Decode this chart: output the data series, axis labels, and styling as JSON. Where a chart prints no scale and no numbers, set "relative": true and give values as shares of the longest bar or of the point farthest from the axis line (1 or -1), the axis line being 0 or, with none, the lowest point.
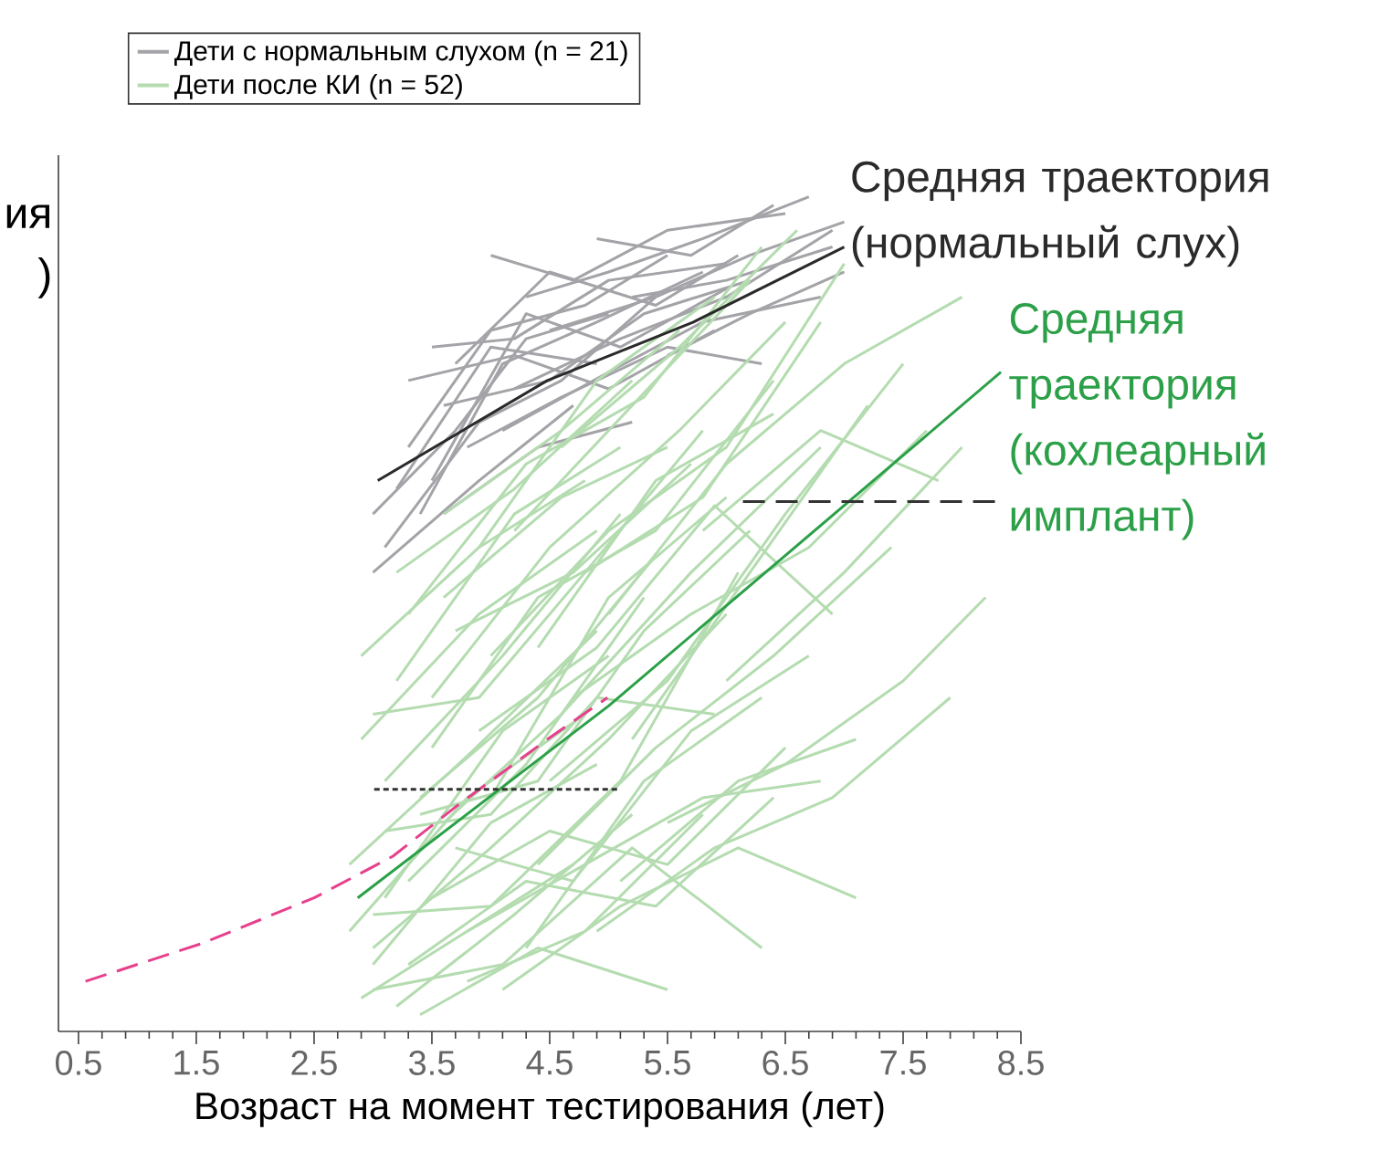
{
  "chart_data": {
    "type": "line",
    "relative": true,
    "xlabel": "Возраст на момент тестирования (лет)",
    "xlim": [
      0.33,
      8.5
    ],
    "xticks": [
      0.5,
      1.5,
      2.5,
      3.5,
      4.5,
      5.5,
      6.5,
      7.5,
      8.5
    ],
    "tick_labels": "x",
    "legend": "top",
    "annotations": [
      {
        "text": "Средняя траектория (нормальный слух)",
        "x": 7.0,
        "y": 0.94
      },
      {
        "text": "Средняя траектория (кохлеарный имплант)",
        "x": 8.33,
        "y": 0.79
      },
      "ия",
      ")"
    ],
    "series": [
      {
        "name": "Дети с нормальным слухом (n = 21)",
        "color": "#a3a3a8",
        "x": [
          3.0,
          3.7,
          4.3,
          5.0
        ],
        "values": [
          0.62,
          0.72,
          0.83,
          0.86
        ]
      },
      {
        "color": "#a3a3a8",
        "x": [
          3.3,
          4.0,
          4.8,
          5.5
        ],
        "values": [
          0.7,
          0.84,
          0.87,
          0.93
        ]
      },
      {
        "color": "#a3a3a8",
        "x": [
          3.5,
          4.2,
          5.0,
          6.0
        ],
        "values": [
          0.82,
          0.83,
          0.9,
          0.92
        ]
      },
      {
        "color": "#a3a3a8",
        "x": [
          3.4,
          4.1,
          4.9,
          5.8
        ],
        "values": [
          0.62,
          0.8,
          0.85,
          0.91
        ]
      },
      {
        "color": "#a3a3a8",
        "x": [
          4.0,
          4.7,
          5.5,
          6.5
        ],
        "values": [
          0.93,
          0.9,
          0.96,
          0.98
        ]
      },
      {
        "color": "#a3a3a8",
        "x": [
          3.1,
          3.9,
          4.6,
          5.4
        ],
        "values": [
          0.58,
          0.73,
          0.78,
          0.88
        ]
      },
      {
        "color": "#a3a3a8",
        "x": [
          3.6,
          4.5,
          5.3,
          6.2
        ],
        "values": [
          0.75,
          0.78,
          0.86,
          0.9
        ]
      },
      {
        "color": "#a3a3a8",
        "x": [
          4.3,
          5.0,
          5.8,
          6.7
        ],
        "values": [
          0.88,
          0.91,
          0.95,
          1.0
        ]
      },
      {
        "color": "#a3a3a8",
        "x": [
          3.2,
          4.0,
          4.9
        ],
        "values": [
          0.65,
          0.82,
          0.8
        ]
      },
      {
        "color": "#a3a3a8",
        "x": [
          4.5,
          5.4,
          6.2,
          7.0
        ],
        "values": [
          0.84,
          0.88,
          0.93,
          0.97
        ]
      },
      {
        "color": "#a3a3a8",
        "x": [
          3.8,
          4.6,
          5.5,
          6.3
        ],
        "values": [
          0.7,
          0.76,
          0.82,
          0.8
        ]
      },
      {
        "color": "#a3a3a8",
        "x": [
          3.5,
          4.3,
          5.1,
          6.0
        ],
        "values": [
          0.66,
          0.86,
          0.82,
          0.89
        ]
      },
      {
        "color": "#a3a3a8",
        "x": [
          4.9,
          5.7,
          6.4
        ],
        "values": [
          0.95,
          0.93,
          0.99
        ]
      },
      {
        "color": "#a3a3a8",
        "x": [
          3.3,
          4.2,
          5.0,
          5.9
        ],
        "values": [
          0.78,
          0.81,
          0.77,
          0.84
        ]
      },
      {
        "color": "#a3a3a8",
        "x": [
          4.1,
          5.0,
          5.8,
          6.8
        ],
        "values": [
          0.72,
          0.79,
          0.85,
          0.88
        ]
      },
      {
        "color": "#a3a3a8",
        "x": [
          3.0,
          3.9,
          4.7
        ],
        "values": [
          0.55,
          0.66,
          0.75
        ]
      },
      {
        "color": "#a3a3a8",
        "x": [
          5.2,
          6.0,
          6.9
        ],
        "values": [
          0.88,
          0.9,
          0.94
        ]
      },
      {
        "color": "#a3a3a8",
        "x": [
          3.7,
          4.5,
          5.4,
          6.1
        ],
        "values": [
          0.8,
          0.91,
          0.87,
          0.93
        ]
      },
      {
        "color": "#a3a3a8",
        "x": [
          4.2,
          5.1,
          6.0,
          6.9
        ],
        "values": [
          0.77,
          0.83,
          0.88,
          0.96
        ]
      },
      {
        "color": "#a3a3a8",
        "x": [
          3.6,
          4.4,
          5.2
        ],
        "values": [
          0.62,
          0.7,
          0.73
        ]
      },
      {
        "color": "#a3a3a8",
        "x": [
          5.5,
          6.2,
          7.0
        ],
        "values": [
          0.81,
          0.86,
          0.91
        ]
      },
      {
        "name": "Дети после КИ (n = 52)",
        "color": "#b4dcb0",
        "x": [
          2.9,
          3.8,
          4.7
        ],
        "values": [
          0.04,
          0.12,
          0.2
        ]
      },
      {
        "color": "#b4dcb0",
        "x": [
          3.0,
          4.0,
          5.0,
          6.0
        ],
        "values": [
          0.1,
          0.22,
          0.35,
          0.5
        ]
      },
      {
        "color": "#b4dcb0",
        "x": [
          3.1,
          4.1,
          5.1
        ],
        "values": [
          0.3,
          0.45,
          0.62
        ]
      },
      {
        "color": "#b4dcb0",
        "x": [
          3.3,
          4.3,
          5.4,
          6.4
        ],
        "values": [
          0.08,
          0.18,
          0.15,
          0.28
        ]
      },
      {
        "color": "#b4dcb0",
        "x": [
          2.8,
          3.8,
          4.9
        ],
        "values": [
          0.2,
          0.33,
          0.48
        ]
      },
      {
        "color": "#b4dcb0",
        "x": [
          3.5,
          4.5,
          5.6,
          6.5
        ],
        "values": [
          0.4,
          0.58,
          0.72,
          0.85
        ]
      },
      {
        "color": "#b4dcb0",
        "x": [
          3.2,
          4.2,
          5.2
        ],
        "values": [
          0.55,
          0.65,
          0.78
        ]
      },
      {
        "color": "#b4dcb0",
        "x": [
          3.0,
          4.0,
          5.1,
          6.1
        ],
        "values": [
          0.14,
          0.15,
          0.3,
          0.55
        ]
      },
      {
        "color": "#b4dcb0",
        "x": [
          3.6,
          4.6,
          5.7,
          6.8
        ],
        "values": [
          0.25,
          0.38,
          0.55,
          0.7
        ]
      },
      {
        "color": "#b4dcb0",
        "x": [
          3.4,
          4.4,
          5.5
        ],
        "values": [
          0.02,
          0.1,
          0.05
        ]
      },
      {
        "color": "#b4dcb0",
        "x": [
          4.0,
          5.0,
          6.0,
          7.0
        ],
        "values": [
          0.45,
          0.6,
          0.7,
          0.92
        ]
      },
      {
        "color": "#b4dcb0",
        "x": [
          3.1,
          4.0,
          4.9,
          5.9
        ],
        "values": [
          0.24,
          0.26,
          0.4,
          0.38
        ]
      },
      {
        "color": "#b4dcb0",
        "x": [
          4.5,
          5.5,
          6.5,
          7.5
        ],
        "values": [
          0.3,
          0.42,
          0.62,
          0.8
        ]
      },
      {
        "color": "#b4dcb0",
        "x": [
          2.9,
          3.9,
          4.9
        ],
        "values": [
          0.35,
          0.5,
          0.6
        ]
      },
      {
        "color": "#b4dcb0",
        "x": [
          3.8,
          4.8,
          5.8,
          6.8
        ],
        "values": [
          0.12,
          0.2,
          0.28,
          0.3
        ]
      },
      {
        "color": "#b4dcb0",
        "x": [
          5.0,
          6.0,
          7.0,
          8.0
        ],
        "values": [
          0.5,
          0.68,
          0.8,
          0.88
        ]
      },
      {
        "color": "#b4dcb0",
        "x": [
          3.3,
          4.3,
          5.3
        ],
        "values": [
          0.18,
          0.32,
          0.52
        ]
      },
      {
        "color": "#b4dcb0",
        "x": [
          4.2,
          5.2,
          6.2
        ],
        "values": [
          0.6,
          0.75,
          0.9
        ]
      },
      {
        "color": "#b4dcb0",
        "x": [
          3.0,
          4.1,
          5.2,
          6.3
        ],
        "values": [
          0.05,
          0.08,
          0.22,
          0.1
        ]
      },
      {
        "color": "#b4dcb0",
        "x": [
          3.7,
          4.7,
          5.7
        ],
        "values": [
          0.48,
          0.55,
          0.68
        ]
      },
      {
        "color": "#b4dcb0",
        "x": [
          4.4,
          5.4,
          6.4,
          7.4
        ],
        "values": [
          0.2,
          0.34,
          0.45,
          0.58
        ]
      },
      {
        "color": "#b4dcb0",
        "x": [
          3.2,
          4.2,
          5.1
        ],
        "values": [
          0.42,
          0.62,
          0.7
        ]
      },
      {
        "color": "#b4dcb0",
        "x": [
          5.2,
          6.2,
          7.2
        ],
        "values": [
          0.35,
          0.55,
          0.75
        ]
      },
      {
        "color": "#b4dcb0",
        "x": [
          3.5,
          4.5,
          5.5,
          6.5
        ],
        "values": [
          0.16,
          0.24,
          0.2,
          0.34
        ]
      },
      {
        "color": "#b4dcb0",
        "x": [
          2.9,
          3.9,
          4.8
        ],
        "values": [
          0.45,
          0.58,
          0.66
        ]
      },
      {
        "color": "#b4dcb0",
        "x": [
          4.6,
          5.6,
          6.6
        ],
        "values": [
          0.7,
          0.82,
          0.96
        ]
      },
      {
        "color": "#b4dcb0",
        "x": [
          3.9,
          4.9,
          5.9,
          6.9
        ],
        "values": [
          0.36,
          0.46,
          0.63,
          0.5
        ]
      },
      {
        "color": "#b4dcb0",
        "x": [
          3.4,
          4.4,
          5.4
        ],
        "values": [
          0.28,
          0.4,
          0.57
        ]
      },
      {
        "color": "#b4dcb0",
        "x": [
          5.5,
          6.5,
          7.5,
          8.2
        ],
        "values": [
          0.25,
          0.32,
          0.42,
          0.52
        ]
      },
      {
        "color": "#b4dcb0",
        "x": [
          3.0,
          4.0,
          4.9
        ],
        "values": [
          0.08,
          0.25,
          0.32
        ]
      },
      {
        "color": "#b4dcb0",
        "x": [
          4.1,
          5.1,
          6.1,
          7.1
        ],
        "values": [
          0.05,
          0.15,
          0.22,
          0.16
        ]
      },
      {
        "color": "#b4dcb0",
        "x": [
          3.6,
          4.6,
          5.6
        ],
        "values": [
          0.62,
          0.72,
          0.84
        ]
      },
      {
        "color": "#b4dcb0",
        "x": [
          4.8,
          5.8,
          6.8
        ],
        "values": [
          0.55,
          0.64,
          0.85
        ]
      },
      {
        "color": "#b4dcb0",
        "x": [
          3.3,
          4.3,
          5.3,
          6.3
        ],
        "values": [
          0.5,
          0.68,
          0.76,
          0.94
        ]
      },
      {
        "color": "#b4dcb0",
        "x": [
          2.8,
          3.8,
          4.8
        ],
        "values": [
          0.12,
          0.28,
          0.38
        ]
      },
      {
        "color": "#b4dcb0",
        "x": [
          4.3,
          5.3,
          6.3
        ],
        "values": [
          0.1,
          0.3,
          0.4
        ]
      },
      {
        "color": "#b4dcb0",
        "x": [
          3.7,
          4.7,
          5.7,
          6.7
        ],
        "values": [
          0.22,
          0.18,
          0.36,
          0.45
        ]
      },
      {
        "color": "#b4dcb0",
        "x": [
          5.8,
          6.8,
          7.8
        ],
        "values": [
          0.6,
          0.72,
          0.66
        ]
      },
      {
        "color": "#b4dcb0",
        "x": [
          3.1,
          4.1,
          5.0
        ],
        "values": [
          0.16,
          0.36,
          0.45
        ]
      },
      {
        "color": "#b4dcb0",
        "x": [
          4.0,
          5.0,
          6.0
        ],
        "values": [
          0.28,
          0.52,
          0.64
        ]
      },
      {
        "color": "#b4dcb0",
        "x": [
          3.5,
          4.4,
          5.4,
          6.4
        ],
        "values": [
          0.34,
          0.52,
          0.6,
          0.78
        ]
      },
      {
        "color": "#b4dcb0",
        "x": [
          4.7,
          5.7,
          6.7,
          7.7
        ],
        "values": [
          0.4,
          0.5,
          0.58,
          0.72
        ]
      },
      {
        "color": "#b4dcb0",
        "x": [
          3.2,
          4.2,
          5.2
        ],
        "values": [
          0.03,
          0.14,
          0.26
        ]
      },
      {
        "color": "#b4dcb0",
        "x": [
          3.9,
          4.9,
          5.9
        ],
        "values": [
          0.58,
          0.78,
          0.88
        ]
      },
      {
        "color": "#b4dcb0",
        "x": [
          5.1,
          6.1,
          7.1
        ],
        "values": [
          0.18,
          0.3,
          0.35
        ]
      },
      {
        "color": "#b4dcb0",
        "x": [
          3.4,
          4.4,
          5.3,
          6.2
        ],
        "values": [
          0.26,
          0.3,
          0.48,
          0.6
        ]
      },
      {
        "color": "#b4dcb0",
        "x": [
          4.4,
          5.4,
          6.4
        ],
        "values": [
          0.46,
          0.66,
          0.74
        ]
      },
      {
        "color": "#b4dcb0",
        "x": [
          3.0,
          3.9,
          4.8,
          5.8
        ],
        "values": [
          0.38,
          0.4,
          0.55,
          0.72
        ]
      },
      {
        "color": "#b4dcb0",
        "x": [
          6.0,
          7.0,
          8.0
        ],
        "values": [
          0.42,
          0.55,
          0.7
        ]
      },
      {
        "color": "#b4dcb0",
        "x": [
          3.8,
          4.8,
          5.8
        ],
        "values": [
          0.06,
          0.12,
          0.26
        ]
      },
      {
        "color": "#b4dcb0",
        "x": [
          4.9,
          5.9,
          6.9,
          7.9
        ],
        "values": [
          0.12,
          0.22,
          0.28,
          0.4
        ]
      },
      {
        "color": "#b4dcb0",
        "x": [
          3.6,
          4.6,
          5.5
        ],
        "values": [
          0.52,
          0.64,
          0.7
        ]
      },
      {
        "color": "#2a2a2a",
        "x": [
          3.04,
          4.48,
          5.72,
          7.0
        ],
        "values": [
          0.66,
          0.78,
          0.85,
          0.94
        ]
      },
      {
        "color": "#2ca048",
        "x": [
          2.87,
          5.0,
          8.33
        ],
        "values": [
          0.16,
          0.39,
          0.79
        ]
      },
      {
        "color": "#e6408c",
        "line_style": "dashed",
        "x": [
          0.56,
          1.54,
          2.5,
          3.17,
          3.71,
          4.48,
          4.99
        ],
        "values": [
          0.06,
          0.105,
          0.16,
          0.21,
          0.27,
          0.35,
          0.4
        ]
      },
      {
        "color": "#333333",
        "line_style": "dotted",
        "x": [
          3.01,
          5.1
        ],
        "values": [
          0.29,
          0.29
        ]
      },
      {
        "color": "#333333",
        "line_style": "dashed",
        "x": [
          6.14,
          8.28
        ],
        "values": [
          0.635,
          0.635
        ]
      }
    ]
  }
}
